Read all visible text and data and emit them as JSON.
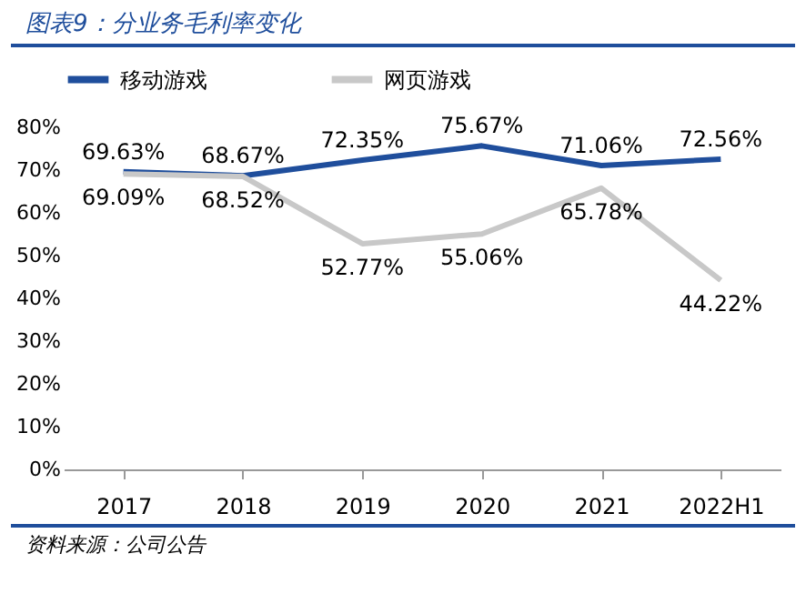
{
  "chart_data": {
    "type": "line",
    "title": "图表9：分业务毛利率变化",
    "annotations": [
      "资料来源：公司公告"
    ],
    "categories": [
      "2017",
      "2018",
      "2019",
      "2020",
      "2021",
      "2022H1"
    ],
    "series": [
      {
        "name": "移动游戏",
        "color": "#1f4e9c",
        "values": [
          69.63,
          68.67,
          72.35,
          75.67,
          71.06,
          72.56
        ],
        "value_labels": [
          "69.63%",
          "68.67%",
          "72.35%",
          "75.67%",
          "71.06%",
          "72.56%"
        ]
      },
      {
        "name": "网页游戏",
        "color": "#c8c8c8",
        "values": [
          69.09,
          68.52,
          52.77,
          55.06,
          65.78,
          44.22
        ],
        "value_labels": [
          "69.09%",
          "68.52%",
          "52.77%",
          "55.06%",
          "65.78%",
          "44.22%"
        ]
      }
    ],
    "ylim": [
      0,
      80
    ],
    "yticks": [
      {
        "value": 0,
        "label": "0%"
      },
      {
        "value": 10,
        "label": "10%"
      },
      {
        "value": 20,
        "label": "20%"
      },
      {
        "value": 30,
        "label": "30%"
      },
      {
        "value": 40,
        "label": "40%"
      },
      {
        "value": 50,
        "label": "50%"
      },
      {
        "value": 60,
        "label": "60%"
      },
      {
        "value": 70,
        "label": "70%"
      },
      {
        "value": 80,
        "label": "80%"
      }
    ],
    "grid": false,
    "legend": "top",
    "marker": "none",
    "line_style": "solid"
  }
}
